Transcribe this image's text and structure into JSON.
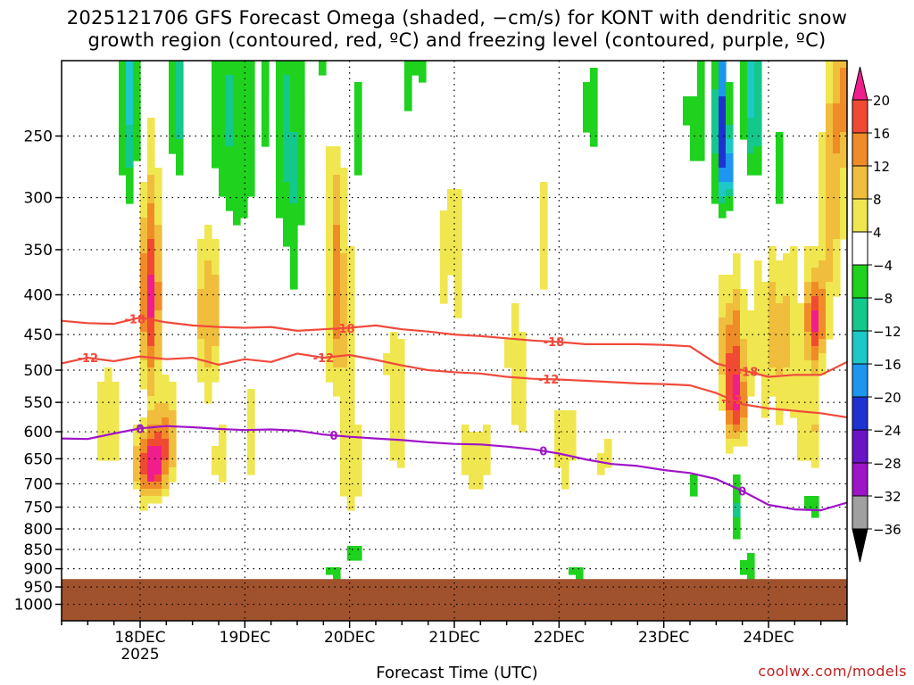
{
  "title": {
    "line1": "2025121706 GFS Forecast Omega (shaded, −cm/s) for KONT with dendritic snow",
    "line2": "growth region (contoured, red, ºC) and freezing level (contoured, purple, ºC)"
  },
  "credit": "coolwx.com/models",
  "chart_data": {
    "type": "heatmap",
    "title": "2025121706 GFS Forecast Omega (shaded, −cm/s) for KONT with dendritic snow growth region (contoured, red, ºC) and freezing level (contoured, purple, ºC)",
    "xlabel": "Forecast Time (UTC)",
    "ylabel": "",
    "x_ticks": [
      "18DEC",
      "19DEC",
      "20DEC",
      "21DEC",
      "22DEC",
      "23DEC",
      "24DEC"
    ],
    "x_year_label": "2025",
    "x_range_days": [
      17.25,
      24.75
    ],
    "y_ticks": [
      250,
      300,
      350,
      400,
      450,
      500,
      550,
      600,
      650,
      700,
      750,
      800,
      850,
      900,
      950,
      1000
    ],
    "y_range_hpa": [
      200,
      1050
    ],
    "y_scale": "log-pressure",
    "grid": true,
    "terrain_pressure_hpa": 928,
    "colorbar": {
      "labels": [
        "20",
        "16",
        "12",
        "8",
        "4",
        "−4",
        "−8",
        "−12",
        "−16",
        "−20",
        "−24",
        "−28",
        "−32",
        "−36"
      ],
      "bins": [
        {
          "range": "<-36",
          "color": "#000000"
        },
        {
          "range": "-36 to -32",
          "color": "#a0a0a0"
        },
        {
          "range": "-32 to -28",
          "color": "#9e14c8"
        },
        {
          "range": "-28 to -24",
          "color": "#6a14c8"
        },
        {
          "range": "-24 to -20",
          "color": "#1e32d2"
        },
        {
          "range": "-20 to -16",
          "color": "#1e96f0"
        },
        {
          "range": "-16 to -12",
          "color": "#1ec8c8"
        },
        {
          "range": "-12 to -8",
          "color": "#14c88c"
        },
        {
          "range": "-8 to -4",
          "color": "#1ed21e"
        },
        {
          "range": "-4 to 4",
          "color": "#ffffff"
        },
        {
          "range": "4 to 8",
          "color": "#f0e650"
        },
        {
          "range": "8 to 12",
          "color": "#f0be3c"
        },
        {
          "range": "12 to 16",
          "color": "#f08c28"
        },
        {
          "range": "16 to 20",
          "color": "#f04a32"
        },
        {
          "range": ">20",
          "color": "#f01e8c"
        }
      ]
    },
    "series": [
      {
        "name": "-18",
        "color": "#f04a3c",
        "labels_at_days": [
          17.95,
          19.95,
          21.95,
          23.8
        ],
        "points": [
          [
            17.25,
            432
          ],
          [
            17.5,
            435
          ],
          [
            17.75,
            436
          ],
          [
            18.0,
            428
          ],
          [
            18.25,
            434
          ],
          [
            18.5,
            438
          ],
          [
            18.75,
            440
          ],
          [
            19.0,
            441
          ],
          [
            19.25,
            440
          ],
          [
            19.5,
            445
          ],
          [
            19.75,
            443
          ],
          [
            20.0,
            441
          ],
          [
            20.25,
            438
          ],
          [
            20.5,
            443
          ],
          [
            20.75,
            446
          ],
          [
            21.0,
            450
          ],
          [
            21.25,
            452
          ],
          [
            21.5,
            455
          ],
          [
            21.75,
            458
          ],
          [
            22.0,
            460
          ],
          [
            22.25,
            463
          ],
          [
            22.5,
            463
          ],
          [
            22.75,
            463
          ],
          [
            23.0,
            464
          ],
          [
            23.25,
            466
          ],
          [
            23.5,
            490
          ],
          [
            23.75,
            500
          ],
          [
            24.0,
            510
          ],
          [
            24.25,
            507
          ],
          [
            24.5,
            507
          ],
          [
            24.75,
            488
          ]
        ]
      },
      {
        "name": "-12",
        "color": "#f04a3c",
        "labels_at_days": [
          17.5,
          19.75,
          21.9,
          23.65
        ],
        "points": [
          [
            17.25,
            490
          ],
          [
            17.5,
            482
          ],
          [
            17.75,
            487
          ],
          [
            18.0,
            480
          ],
          [
            18.25,
            484
          ],
          [
            18.5,
            482
          ],
          [
            18.75,
            492
          ],
          [
            19.0,
            484
          ],
          [
            19.25,
            488
          ],
          [
            19.5,
            476
          ],
          [
            19.75,
            482
          ],
          [
            20.0,
            478
          ],
          [
            20.25,
            485
          ],
          [
            20.5,
            493
          ],
          [
            20.75,
            500
          ],
          [
            21.0,
            503
          ],
          [
            21.25,
            505
          ],
          [
            21.5,
            510
          ],
          [
            21.75,
            513
          ],
          [
            22.0,
            514
          ],
          [
            22.25,
            516
          ],
          [
            22.5,
            518
          ],
          [
            22.75,
            520
          ],
          [
            23.0,
            521
          ],
          [
            23.25,
            523
          ],
          [
            23.5,
            535
          ],
          [
            23.75,
            553
          ],
          [
            24.0,
            560
          ],
          [
            24.25,
            564
          ],
          [
            24.5,
            568
          ],
          [
            24.75,
            575
          ]
        ]
      },
      {
        "name": "0",
        "color": "#a014c8",
        "labels_at_days": [
          18.0,
          19.85,
          21.85,
          23.75
        ],
        "points": [
          [
            17.25,
            612
          ],
          [
            17.5,
            613
          ],
          [
            17.75,
            603
          ],
          [
            18.0,
            594
          ],
          [
            18.25,
            590
          ],
          [
            18.5,
            592
          ],
          [
            18.75,
            595
          ],
          [
            19.0,
            597
          ],
          [
            19.25,
            596
          ],
          [
            19.5,
            598
          ],
          [
            19.75,
            605
          ],
          [
            20.0,
            609
          ],
          [
            20.25,
            612
          ],
          [
            20.5,
            615
          ],
          [
            20.75,
            619
          ],
          [
            21.0,
            622
          ],
          [
            21.25,
            623
          ],
          [
            21.5,
            627
          ],
          [
            21.75,
            632
          ],
          [
            22.0,
            640
          ],
          [
            22.25,
            651
          ],
          [
            22.5,
            660
          ],
          [
            22.75,
            664
          ],
          [
            23.0,
            672
          ],
          [
            23.25,
            678
          ],
          [
            23.5,
            690
          ],
          [
            23.75,
            715
          ],
          [
            24.0,
            745
          ],
          [
            24.25,
            755
          ],
          [
            24.5,
            757
          ],
          [
            24.75,
            740
          ]
        ]
      }
    ]
  }
}
